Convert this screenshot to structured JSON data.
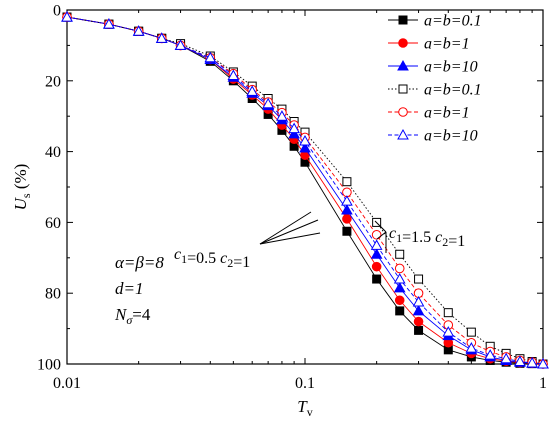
{
  "chart_data": {
    "type": "line",
    "xlabel": {
      "main": "T",
      "sub": "v"
    },
    "ylabel": {
      "main": "U",
      "sub": "s",
      "unit": " (%)"
    },
    "x_scale": "log",
    "xlim": [
      0.01,
      1
    ],
    "ylim": [
      0,
      100
    ],
    "y_inverted": true,
    "x_ticks": [
      "0.01",
      "0.1",
      "1"
    ],
    "y_ticks": [
      "0",
      "20",
      "40",
      "60",
      "80",
      "100"
    ],
    "grid": false,
    "legend_position": "top-right",
    "legend": [
      "a=b=0.1",
      "a=b=1",
      "a=b=10",
      "a=b=0.1",
      "a=b=1",
      "a=b=10"
    ],
    "annotations": {
      "left": "c1=0.5 c2=1",
      "right": "c1=1.5 c2=1"
    },
    "params": [
      "α=β=8",
      "d=1",
      "Nσ=4"
    ],
    "x": [
      0.01,
      0.015,
      0.02,
      0.025,
      0.03,
      0.04,
      0.05,
      0.06,
      0.07,
      0.08,
      0.09,
      0.1,
      0.15,
      0.2,
      0.25,
      0.3,
      0.4,
      0.5,
      0.6,
      0.7,
      0.8,
      0.9,
      1.0
    ],
    "series": [
      {
        "color": "#000000",
        "marker": "square",
        "filled": true,
        "dash": "solid",
        "values": [
          2,
          4,
          6,
          8,
          10,
          14.5,
          20,
          25,
          29.5,
          34,
          38.5,
          43,
          62.5,
          76,
          85,
          90.5,
          96,
          98,
          99,
          99.5,
          99.8,
          99.9,
          100
        ]
      },
      {
        "color": "#ff0000",
        "marker": "circle",
        "filled": true,
        "dash": "solid",
        "values": [
          2,
          4,
          6,
          8,
          10,
          14,
          19.5,
          24,
          28,
          32.5,
          36.5,
          41,
          59,
          72.5,
          82,
          88,
          94,
          97,
          98.5,
          99.2,
          99.6,
          99.8,
          100
        ]
      },
      {
        "color": "#0000ff",
        "marker": "triangle",
        "filled": true,
        "dash": "solid",
        "values": [
          2,
          4,
          6,
          8,
          10,
          14,
          19,
          23.5,
          27,
          31,
          35,
          39,
          56.5,
          69,
          78.5,
          85,
          92,
          96,
          98,
          99,
          99.5,
          99.8,
          100
        ]
      },
      {
        "color": "#000000",
        "marker": "square",
        "filled": false,
        "dash": "dotted",
        "values": [
          2,
          4,
          6,
          8,
          9.5,
          13,
          17.5,
          21.5,
          25,
          28,
          31.5,
          34.5,
          48.5,
          60,
          69,
          76,
          85.5,
          91,
          95,
          97,
          98.5,
          99.3,
          100
        ]
      },
      {
        "color": "#ff0000",
        "marker": "circle",
        "filled": false,
        "dash": "dashed",
        "values": [
          2,
          4,
          6,
          8,
          10,
          13.5,
          18,
          22.5,
          26,
          29,
          32.5,
          36,
          51.5,
          63.5,
          73,
          80,
          89,
          94,
          96.5,
          98,
          99,
          99.5,
          100
        ]
      },
      {
        "color": "#0000ff",
        "marker": "triangle",
        "filled": false,
        "dash": "dashed",
        "values": [
          2,
          4,
          6,
          8,
          10,
          13.5,
          18.5,
          23,
          26.5,
          30,
          33.5,
          37,
          54,
          66.5,
          76,
          82.5,
          91,
          95.5,
          97.5,
          98.5,
          99.3,
          99.7,
          100
        ]
      }
    ]
  }
}
